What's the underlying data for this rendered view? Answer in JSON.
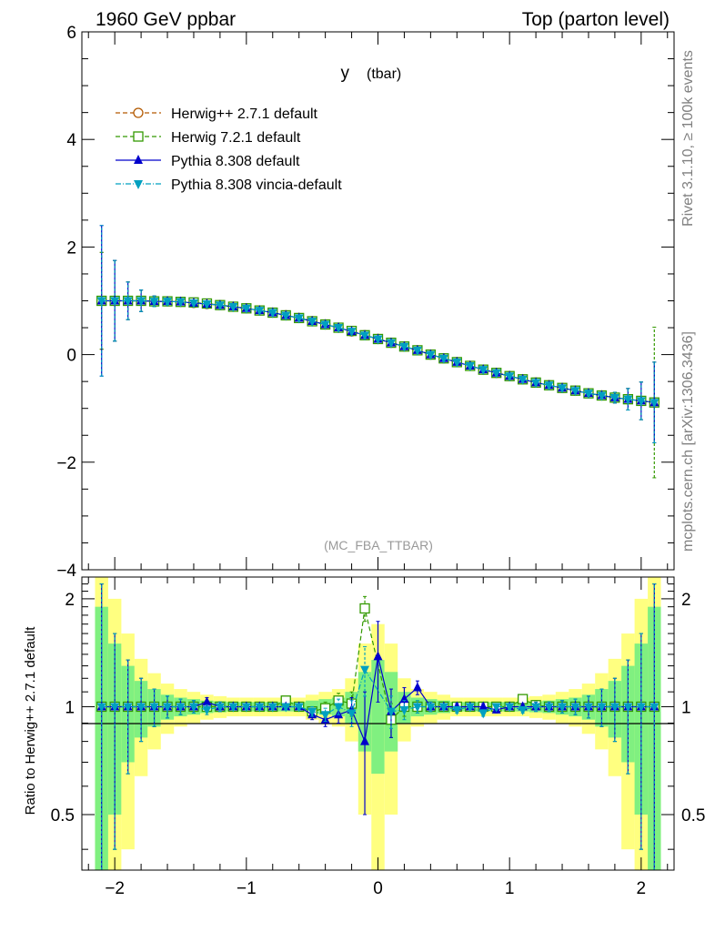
{
  "header": {
    "left": "1960 GeV ppbar",
    "right": "Top (parton level)"
  },
  "side_labels": {
    "rivet": "Rivet 3.1.10, ≥ 100k events",
    "mcplots": "mcplots.cern.ch [arXiv:1306.3436]"
  },
  "chart_data": [
    {
      "type": "line",
      "panel": "main",
      "title_main": "y",
      "title_sub": "(tbar)",
      "analysis_label": "(MC_FBA_TTBAR)",
      "xlim": [
        -2.25,
        2.25
      ],
      "ylim": [
        -4,
        6
      ],
      "ytick_values": [
        -4,
        -2,
        0,
        2,
        4,
        6
      ],
      "ytick_labels": [
        "−4",
        "−2",
        "0",
        "2",
        "4",
        "6"
      ],
      "x": [
        -2.1,
        -2.0,
        -1.9,
        -1.8,
        -1.7,
        -1.6,
        -1.5,
        -1.4,
        -1.3,
        -1.2,
        -1.1,
        -1.0,
        -0.9,
        -0.8,
        -0.7,
        -0.6,
        -0.5,
        -0.4,
        -0.3,
        -0.2,
        -0.1,
        0.0,
        0.1,
        0.2,
        0.3,
        0.4,
        0.5,
        0.6,
        0.7,
        0.8,
        0.9,
        1.0,
        1.1,
        1.2,
        1.3,
        1.4,
        1.5,
        1.6,
        1.7,
        1.8,
        1.9,
        2.0,
        2.1
      ],
      "series": [
        {
          "name": "Herwig++ 2.7.1 default",
          "color": "#b35900",
          "marker": "circle-open",
          "dash": "5,3",
          "values": [
            1.0,
            1.0,
            1.0,
            1.0,
            0.99,
            0.99,
            0.98,
            0.96,
            0.94,
            0.92,
            0.89,
            0.86,
            0.82,
            0.78,
            0.73,
            0.68,
            0.62,
            0.56,
            0.5,
            0.43,
            0.36,
            0.29,
            0.22,
            0.15,
            0.08,
            0.0,
            -0.07,
            -0.14,
            -0.21,
            -0.28,
            -0.34,
            -0.4,
            -0.46,
            -0.52,
            -0.57,
            -0.62,
            -0.67,
            -0.72,
            -0.76,
            -0.8,
            -0.83,
            -0.86,
            -0.89
          ],
          "errors": [
            0.9,
            0.75,
            0.35,
            0.2,
            0.1,
            0.06,
            0.04,
            0.03,
            0.02,
            0.02,
            0.02,
            0.02,
            0.02,
            0.02,
            0.02,
            0.02,
            0.02,
            0.02,
            0.02,
            0.02,
            0.02,
            0.02,
            0.02,
            0.02,
            0.02,
            0.02,
            0.02,
            0.02,
            0.02,
            0.02,
            0.02,
            0.02,
            0.02,
            0.02,
            0.02,
            0.02,
            0.03,
            0.04,
            0.06,
            0.1,
            0.2,
            0.35,
            0.75
          ]
        },
        {
          "name": "Herwig 7.2.1 default",
          "color": "#339900",
          "marker": "square-open",
          "dash": "5,3",
          "values": [
            1.0,
            1.0,
            1.0,
            1.0,
            0.99,
            0.99,
            0.98,
            0.97,
            0.95,
            0.92,
            0.89,
            0.86,
            0.82,
            0.78,
            0.73,
            0.68,
            0.62,
            0.56,
            0.5,
            0.44,
            0.36,
            0.29,
            0.22,
            0.15,
            0.08,
            0.0,
            -0.07,
            -0.14,
            -0.21,
            -0.28,
            -0.34,
            -0.4,
            -0.46,
            -0.52,
            -0.57,
            -0.62,
            -0.67,
            -0.72,
            -0.76,
            -0.8,
            -0.83,
            -0.86,
            -0.89
          ],
          "errors": [
            0.9,
            0.75,
            0.35,
            0.2,
            0.1,
            0.06,
            0.04,
            0.03,
            0.02,
            0.02,
            0.02,
            0.02,
            0.02,
            0.02,
            0.02,
            0.02,
            0.02,
            0.02,
            0.02,
            0.02,
            0.02,
            0.02,
            0.02,
            0.02,
            0.02,
            0.02,
            0.02,
            0.02,
            0.02,
            0.02,
            0.02,
            0.02,
            0.02,
            0.02,
            0.02,
            0.02,
            0.03,
            0.04,
            0.06,
            0.1,
            0.2,
            0.35,
            1.4
          ]
        },
        {
          "name": "Pythia 8.308 default",
          "color": "#0000cc",
          "marker": "triangle-up",
          "dash": "",
          "values": [
            1.0,
            1.0,
            1.0,
            1.0,
            0.99,
            0.99,
            0.98,
            0.96,
            0.94,
            0.92,
            0.89,
            0.86,
            0.82,
            0.78,
            0.73,
            0.68,
            0.62,
            0.56,
            0.5,
            0.43,
            0.36,
            0.29,
            0.22,
            0.15,
            0.08,
            0.0,
            -0.07,
            -0.14,
            -0.21,
            -0.28,
            -0.34,
            -0.4,
            -0.46,
            -0.52,
            -0.57,
            -0.62,
            -0.67,
            -0.72,
            -0.76,
            -0.8,
            -0.83,
            -0.86,
            -0.89
          ],
          "errors": [
            1.4,
            0.75,
            0.35,
            0.2,
            0.1,
            0.06,
            0.04,
            0.03,
            0.02,
            0.02,
            0.02,
            0.02,
            0.02,
            0.02,
            0.02,
            0.02,
            0.02,
            0.02,
            0.02,
            0.02,
            0.02,
            0.02,
            0.02,
            0.02,
            0.02,
            0.02,
            0.02,
            0.02,
            0.02,
            0.02,
            0.02,
            0.02,
            0.02,
            0.02,
            0.02,
            0.02,
            0.03,
            0.04,
            0.06,
            0.1,
            0.2,
            0.35,
            0.75
          ]
        },
        {
          "name": "Pythia 8.308 vincia-default",
          "color": "#00a0c0",
          "marker": "triangle-down",
          "dash": "6,2,1,2",
          "values": [
            1.0,
            1.0,
            1.0,
            1.0,
            0.99,
            0.99,
            0.98,
            0.96,
            0.94,
            0.92,
            0.89,
            0.86,
            0.82,
            0.78,
            0.73,
            0.68,
            0.62,
            0.56,
            0.5,
            0.43,
            0.36,
            0.29,
            0.22,
            0.15,
            0.08,
            0.0,
            -0.07,
            -0.14,
            -0.21,
            -0.28,
            -0.34,
            -0.4,
            -0.46,
            -0.52,
            -0.57,
            -0.62,
            -0.67,
            -0.72,
            -0.76,
            -0.8,
            -0.83,
            -0.86,
            -0.89
          ],
          "errors": [
            1.4,
            0.75,
            0.35,
            0.2,
            0.1,
            0.06,
            0.04,
            0.03,
            0.02,
            0.02,
            0.02,
            0.02,
            0.02,
            0.02,
            0.02,
            0.02,
            0.02,
            0.02,
            0.02,
            0.02,
            0.02,
            0.02,
            0.02,
            0.02,
            0.02,
            0.02,
            0.02,
            0.02,
            0.02,
            0.02,
            0.02,
            0.02,
            0.02,
            0.02,
            0.02,
            0.02,
            0.03,
            0.04,
            0.06,
            0.1,
            0.2,
            0.35,
            0.75
          ]
        }
      ]
    },
    {
      "type": "line",
      "panel": "ratio",
      "ylabel": "Ratio to Herwig++ 2.7.1 default",
      "xlim": [
        -2.25,
        2.25
      ],
      "ylim": [
        0.35,
        2.3
      ],
      "yscale": "log",
      "ytick_values": [
        0.5,
        1,
        2
      ],
      "ytick_labels": [
        "0.5",
        "1",
        "2"
      ],
      "xtick_values": [
        -2,
        -1,
        0,
        1,
        2
      ],
      "xtick_labels": [
        "−2",
        "−1",
        "0",
        "1",
        "2"
      ],
      "x": [
        -2.1,
        -2.0,
        -1.9,
        -1.8,
        -1.7,
        -1.6,
        -1.5,
        -1.4,
        -1.3,
        -1.2,
        -1.1,
        -1.0,
        -0.9,
        -0.8,
        -0.7,
        -0.6,
        -0.5,
        -0.4,
        -0.3,
        -0.2,
        -0.1,
        0.0,
        0.1,
        0.2,
        0.3,
        0.4,
        0.5,
        0.6,
        0.7,
        0.8,
        0.9,
        1.0,
        1.1,
        1.2,
        1.3,
        1.4,
        1.5,
        1.6,
        1.7,
        1.8,
        1.9,
        2.0,
        2.1
      ],
      "band_color_1sigma": "#80f080",
      "band_color_2sigma": "#ffff80",
      "band_halfwidth_1sigma": [
        0.9,
        0.5,
        0.3,
        0.18,
        0.12,
        0.08,
        0.06,
        0.05,
        0.04,
        0.035,
        0.03,
        0.03,
        0.03,
        0.03,
        0.03,
        0.03,
        0.04,
        0.05,
        0.06,
        0.1,
        0.25,
        0.35,
        0.25,
        0.1,
        0.06,
        0.05,
        0.04,
        0.03,
        0.03,
        0.03,
        0.03,
        0.03,
        0.03,
        0.035,
        0.04,
        0.05,
        0.06,
        0.08,
        0.12,
        0.18,
        0.3,
        0.5,
        0.9
      ],
      "series": [
        {
          "name": "Herwig 7.2.1 default",
          "color": "#339900",
          "marker": "square-open",
          "dash": "5,3",
          "values": [
            1.0,
            1.0,
            1.0,
            1.0,
            1.0,
            1.0,
            1.0,
            1.0,
            1.0,
            1.0,
            1.0,
            1.0,
            1.0,
            1.0,
            1.04,
            1.0,
            0.97,
            0.99,
            1.04,
            1.02,
            1.88,
            null,
            0.92,
            1.0,
            1.0,
            1.0,
            1.0,
            1.0,
            1.0,
            1.0,
            1.0,
            1.0,
            1.05,
            1.01,
            1.0,
            1.0,
            1.0,
            1.0,
            1.0,
            1.0,
            1.0,
            1.0,
            1.0
          ],
          "errors": [
            1.2,
            0.6,
            0.35,
            0.2,
            0.12,
            0.07,
            0.05,
            0.04,
            0.03,
            0.03,
            0.02,
            0.02,
            0.02,
            0.02,
            0.02,
            0.02,
            0.03,
            0.04,
            0.05,
            0.08,
            0.15,
            0.5,
            0.1,
            0.06,
            0.04,
            0.03,
            0.02,
            0.02,
            0.02,
            0.02,
            0.02,
            0.02,
            0.02,
            0.03,
            0.03,
            0.04,
            0.05,
            0.07,
            0.12,
            0.2,
            0.35,
            0.6,
            1.2
          ]
        },
        {
          "name": "Pythia 8.308 default",
          "color": "#0000cc",
          "marker": "triangle-up",
          "dash": "",
          "values": [
            1.0,
            1.0,
            1.0,
            1.0,
            1.0,
            1.0,
            1.0,
            1.0,
            1.03,
            1.0,
            1.0,
            1.0,
            1.0,
            1.0,
            1.0,
            1.0,
            0.95,
            0.92,
            0.95,
            0.98,
            0.8,
            1.38,
            0.97,
            1.05,
            1.13,
            1.0,
            1.0,
            1.0,
            1.0,
            1.0,
            0.98,
            1.0,
            1.0,
            1.0,
            1.0,
            1.0,
            1.0,
            1.0,
            1.0,
            1.0,
            1.0,
            1.0,
            1.0
          ],
          "errors": [
            1.2,
            0.6,
            0.35,
            0.2,
            0.12,
            0.07,
            0.05,
            0.04,
            0.03,
            0.03,
            0.02,
            0.02,
            0.02,
            0.02,
            0.02,
            0.02,
            0.03,
            0.04,
            0.05,
            0.08,
            0.3,
            0.35,
            0.15,
            0.08,
            0.05,
            0.03,
            0.02,
            0.02,
            0.02,
            0.02,
            0.02,
            0.02,
            0.02,
            0.03,
            0.03,
            0.04,
            0.05,
            0.07,
            0.12,
            0.2,
            0.35,
            0.6,
            1.2
          ]
        },
        {
          "name": "Pythia 8.308 vincia-default",
          "color": "#00a0c0",
          "marker": "triangle-down",
          "dash": "6,2,1,2",
          "values": [
            1.0,
            1.0,
            1.0,
            1.0,
            1.0,
            1.0,
            1.0,
            1.0,
            0.98,
            1.0,
            1.0,
            1.0,
            1.0,
            1.0,
            1.0,
            1.0,
            0.97,
            0.95,
            1.0,
            0.96,
            1.27,
            null,
            0.97,
            0.98,
            1.0,
            1.0,
            1.0,
            0.98,
            1.0,
            0.96,
            1.0,
            1.0,
            0.98,
            1.0,
            1.0,
            1.0,
            1.0,
            1.0,
            1.0,
            1.0,
            1.0,
            1.0,
            1.0
          ],
          "errors": [
            1.2,
            0.6,
            0.35,
            0.2,
            0.12,
            0.07,
            0.05,
            0.04,
            0.03,
            0.03,
            0.02,
            0.02,
            0.02,
            0.02,
            0.02,
            0.02,
            0.03,
            0.04,
            0.05,
            0.08,
            0.2,
            0.5,
            0.1,
            0.06,
            0.04,
            0.03,
            0.02,
            0.02,
            0.02,
            0.02,
            0.02,
            0.02,
            0.02,
            0.03,
            0.03,
            0.04,
            0.05,
            0.07,
            0.12,
            0.2,
            0.35,
            0.6,
            1.2
          ]
        }
      ]
    }
  ]
}
